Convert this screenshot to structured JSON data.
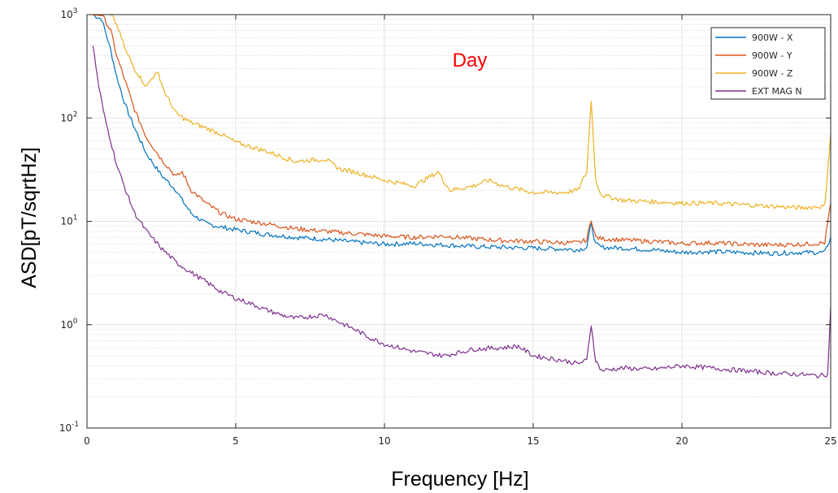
{
  "chart_data": {
    "type": "line",
    "title": "",
    "annotation": {
      "text": "Day",
      "color": "#ff0000"
    },
    "xlabel": "Frequency [Hz]",
    "ylabel": "ASD[pT/sqrtHz]",
    "xlim": [
      0,
      25
    ],
    "ylim": [
      0.1,
      1000
    ],
    "yscale": "log",
    "grid": true,
    "minor_grid": true,
    "legend_position": "top-right",
    "x_ticks": [
      "0",
      "5",
      "10",
      "15",
      "20",
      "25"
    ],
    "y_ticks": [
      {
        "base": "10",
        "exp": "-1"
      },
      {
        "base": "10",
        "exp": "0"
      },
      {
        "base": "10",
        "exp": "1"
      },
      {
        "base": "10",
        "exp": "2"
      },
      {
        "base": "10",
        "exp": "3"
      }
    ],
    "series": [
      {
        "name": "900W - X",
        "color": "#0072bd",
        "x": [
          0.2,
          0.5,
          0.8,
          1.0,
          1.3,
          1.6,
          2.0,
          2.5,
          3.0,
          3.2,
          3.5,
          4.0,
          4.5,
          5.0,
          6.0,
          7.0,
          8.0,
          9.0,
          10.0,
          11.0,
          12.0,
          13.0,
          14.0,
          15.0,
          16.0,
          16.5,
          16.8,
          16.95,
          17.1,
          17.3,
          18.0,
          19.0,
          20.0,
          21.0,
          22.0,
          23.0,
          24.0,
          24.8,
          25.0
        ],
        "y": [
          1000,
          900,
          450,
          250,
          130,
          80,
          45,
          28,
          20,
          16,
          12,
          9.5,
          8.8,
          8.3,
          7.5,
          7,
          6.7,
          6.3,
          6,
          6.1,
          5.9,
          5.7,
          5.6,
          5.5,
          5.4,
          5.3,
          5.6,
          9.5,
          6,
          5.6,
          5.5,
          5.3,
          5.0,
          5.1,
          5.0,
          4.9,
          5.0,
          5.0,
          7
        ]
      },
      {
        "name": "900W - Y",
        "color": "#d95319",
        "x": [
          0.2,
          0.5,
          0.8,
          1.0,
          1.3,
          1.6,
          2.0,
          2.5,
          3.0,
          3.2,
          3.5,
          4.0,
          4.5,
          5.0,
          6.0,
          7.0,
          8.0,
          9.0,
          10.0,
          11.0,
          12.0,
          13.0,
          14.0,
          15.0,
          16.0,
          16.5,
          16.8,
          16.95,
          17.1,
          17.3,
          18.0,
          19.0,
          20.0,
          21.0,
          22.0,
          23.0,
          24.0,
          24.8,
          25.0
        ],
        "y": [
          1000,
          1000,
          700,
          400,
          220,
          120,
          65,
          40,
          27,
          30,
          20,
          15,
          12,
          10.5,
          9.5,
          8.5,
          8,
          7.6,
          7.2,
          7,
          7.2,
          6.8,
          6.5,
          6.4,
          6.2,
          6.2,
          6.6,
          10.5,
          7,
          6.8,
          6.6,
          6.4,
          6.1,
          6.2,
          6.0,
          5.9,
          6.0,
          6.2,
          15
        ]
      },
      {
        "name": "900W - Z",
        "color": "#edb120",
        "x": [
          0.8,
          1.0,
          1.3,
          1.6,
          2.0,
          2.2,
          2.4,
          2.6,
          3.0,
          3.5,
          4.0,
          4.5,
          5.0,
          6.0,
          7.0,
          8.0,
          8.5,
          9.0,
          10.0,
          11.0,
          11.8,
          12.2,
          13.0,
          13.5,
          14.0,
          15.0,
          16.0,
          16.5,
          16.8,
          16.95,
          17.1,
          17.3,
          18.0,
          19.0,
          20.0,
          21.0,
          22.0,
          23.0,
          24.0,
          24.8,
          25.0
        ],
        "y": [
          1000,
          800,
          450,
          300,
          200,
          250,
          270,
          180,
          110,
          90,
          80,
          70,
          58,
          48,
          38,
          40,
          32,
          30,
          25,
          22,
          30,
          20,
          22,
          25,
          22,
          19,
          19,
          20,
          30,
          150,
          25,
          18,
          16,
          15.5,
          15,
          15,
          14.5,
          14,
          13.5,
          14,
          70
        ]
      },
      {
        "name": "EXT MAG N",
        "color": "#7e2f8e",
        "x": [
          0.2,
          0.4,
          0.6,
          0.8,
          1.0,
          1.3,
          1.6,
          2.0,
          2.5,
          3.0,
          3.5,
          4.0,
          4.5,
          5.0,
          5.5,
          6.0,
          6.5,
          7.0,
          7.5,
          8.0,
          8.5,
          9.0,
          9.5,
          10.0,
          11.0,
          12.0,
          13.0,
          14.0,
          14.5,
          15.0,
          16.0,
          16.5,
          16.8,
          16.95,
          17.1,
          17.3,
          18.0,
          19.0,
          20.0,
          21.0,
          22.0,
          23.0,
          24.0,
          24.6,
          24.9,
          25.0
        ],
        "y": [
          500,
          200,
          100,
          60,
          35,
          20,
          12,
          8,
          5.5,
          4,
          3.2,
          2.6,
          2.1,
          1.8,
          1.6,
          1.4,
          1.25,
          1.15,
          1.2,
          1.25,
          1.05,
          0.9,
          0.75,
          0.65,
          0.55,
          0.5,
          0.58,
          0.6,
          0.62,
          0.5,
          0.45,
          0.42,
          0.45,
          1.0,
          0.45,
          0.36,
          0.38,
          0.37,
          0.4,
          0.38,
          0.36,
          0.34,
          0.33,
          0.32,
          0.33,
          1.5
        ]
      }
    ]
  }
}
